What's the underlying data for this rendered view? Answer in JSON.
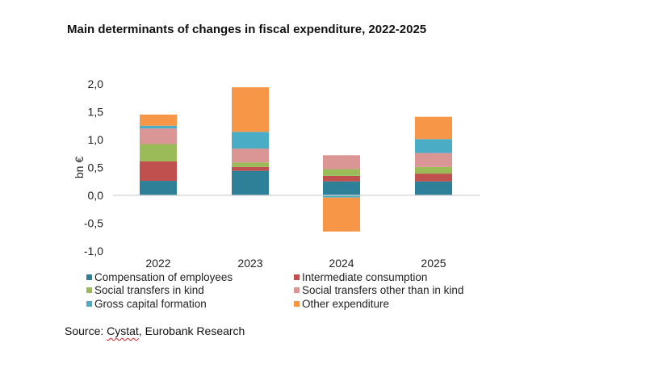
{
  "chart_data": {
    "type": "bar",
    "stacked": true,
    "title": "Main determinants of changes in fiscal expenditure, 2022-2025",
    "xlabel": "",
    "ylabel": "bn €",
    "ylim": [
      -1.0,
      2.0
    ],
    "yticks": [
      "2,0",
      "1,5",
      "1,0",
      "0,5",
      "0,0",
      "-0,5",
      "-1,0"
    ],
    "ytick_values": [
      2.0,
      1.5,
      1.0,
      0.5,
      0.0,
      -0.5,
      -1.0
    ],
    "categories": [
      "2022",
      "2023",
      "2024",
      "2025"
    ],
    "series": [
      {
        "name": "Compensation of employees",
        "color": "#2e7f98",
        "values": [
          0.26,
          0.44,
          0.25,
          0.25
        ]
      },
      {
        "name": "Intermediate consumption",
        "color": "#c0504d",
        "values": [
          0.35,
          0.07,
          0.1,
          0.14
        ]
      },
      {
        "name": "Social transfers in kind",
        "color": "#9bbb59",
        "values": [
          0.31,
          0.08,
          0.12,
          0.12
        ]
      },
      {
        "name": "Social transfers other than in kind",
        "color": "#da9694",
        "values": [
          0.28,
          0.25,
          0.25,
          0.25
        ]
      },
      {
        "name": "Gross capital formation",
        "color": "#4bacc6",
        "values": [
          0.05,
          0.3,
          -0.04,
          0.25
        ]
      },
      {
        "name": "Other expenditure",
        "color": "#f79646",
        "values": [
          0.2,
          0.8,
          -0.61,
          0.4
        ]
      }
    ],
    "legend_position": "bottom",
    "grid": false,
    "source_prefix": "Source: ",
    "source_underlined": "Cystat",
    "source_rest": ", Eurobank Research"
  }
}
